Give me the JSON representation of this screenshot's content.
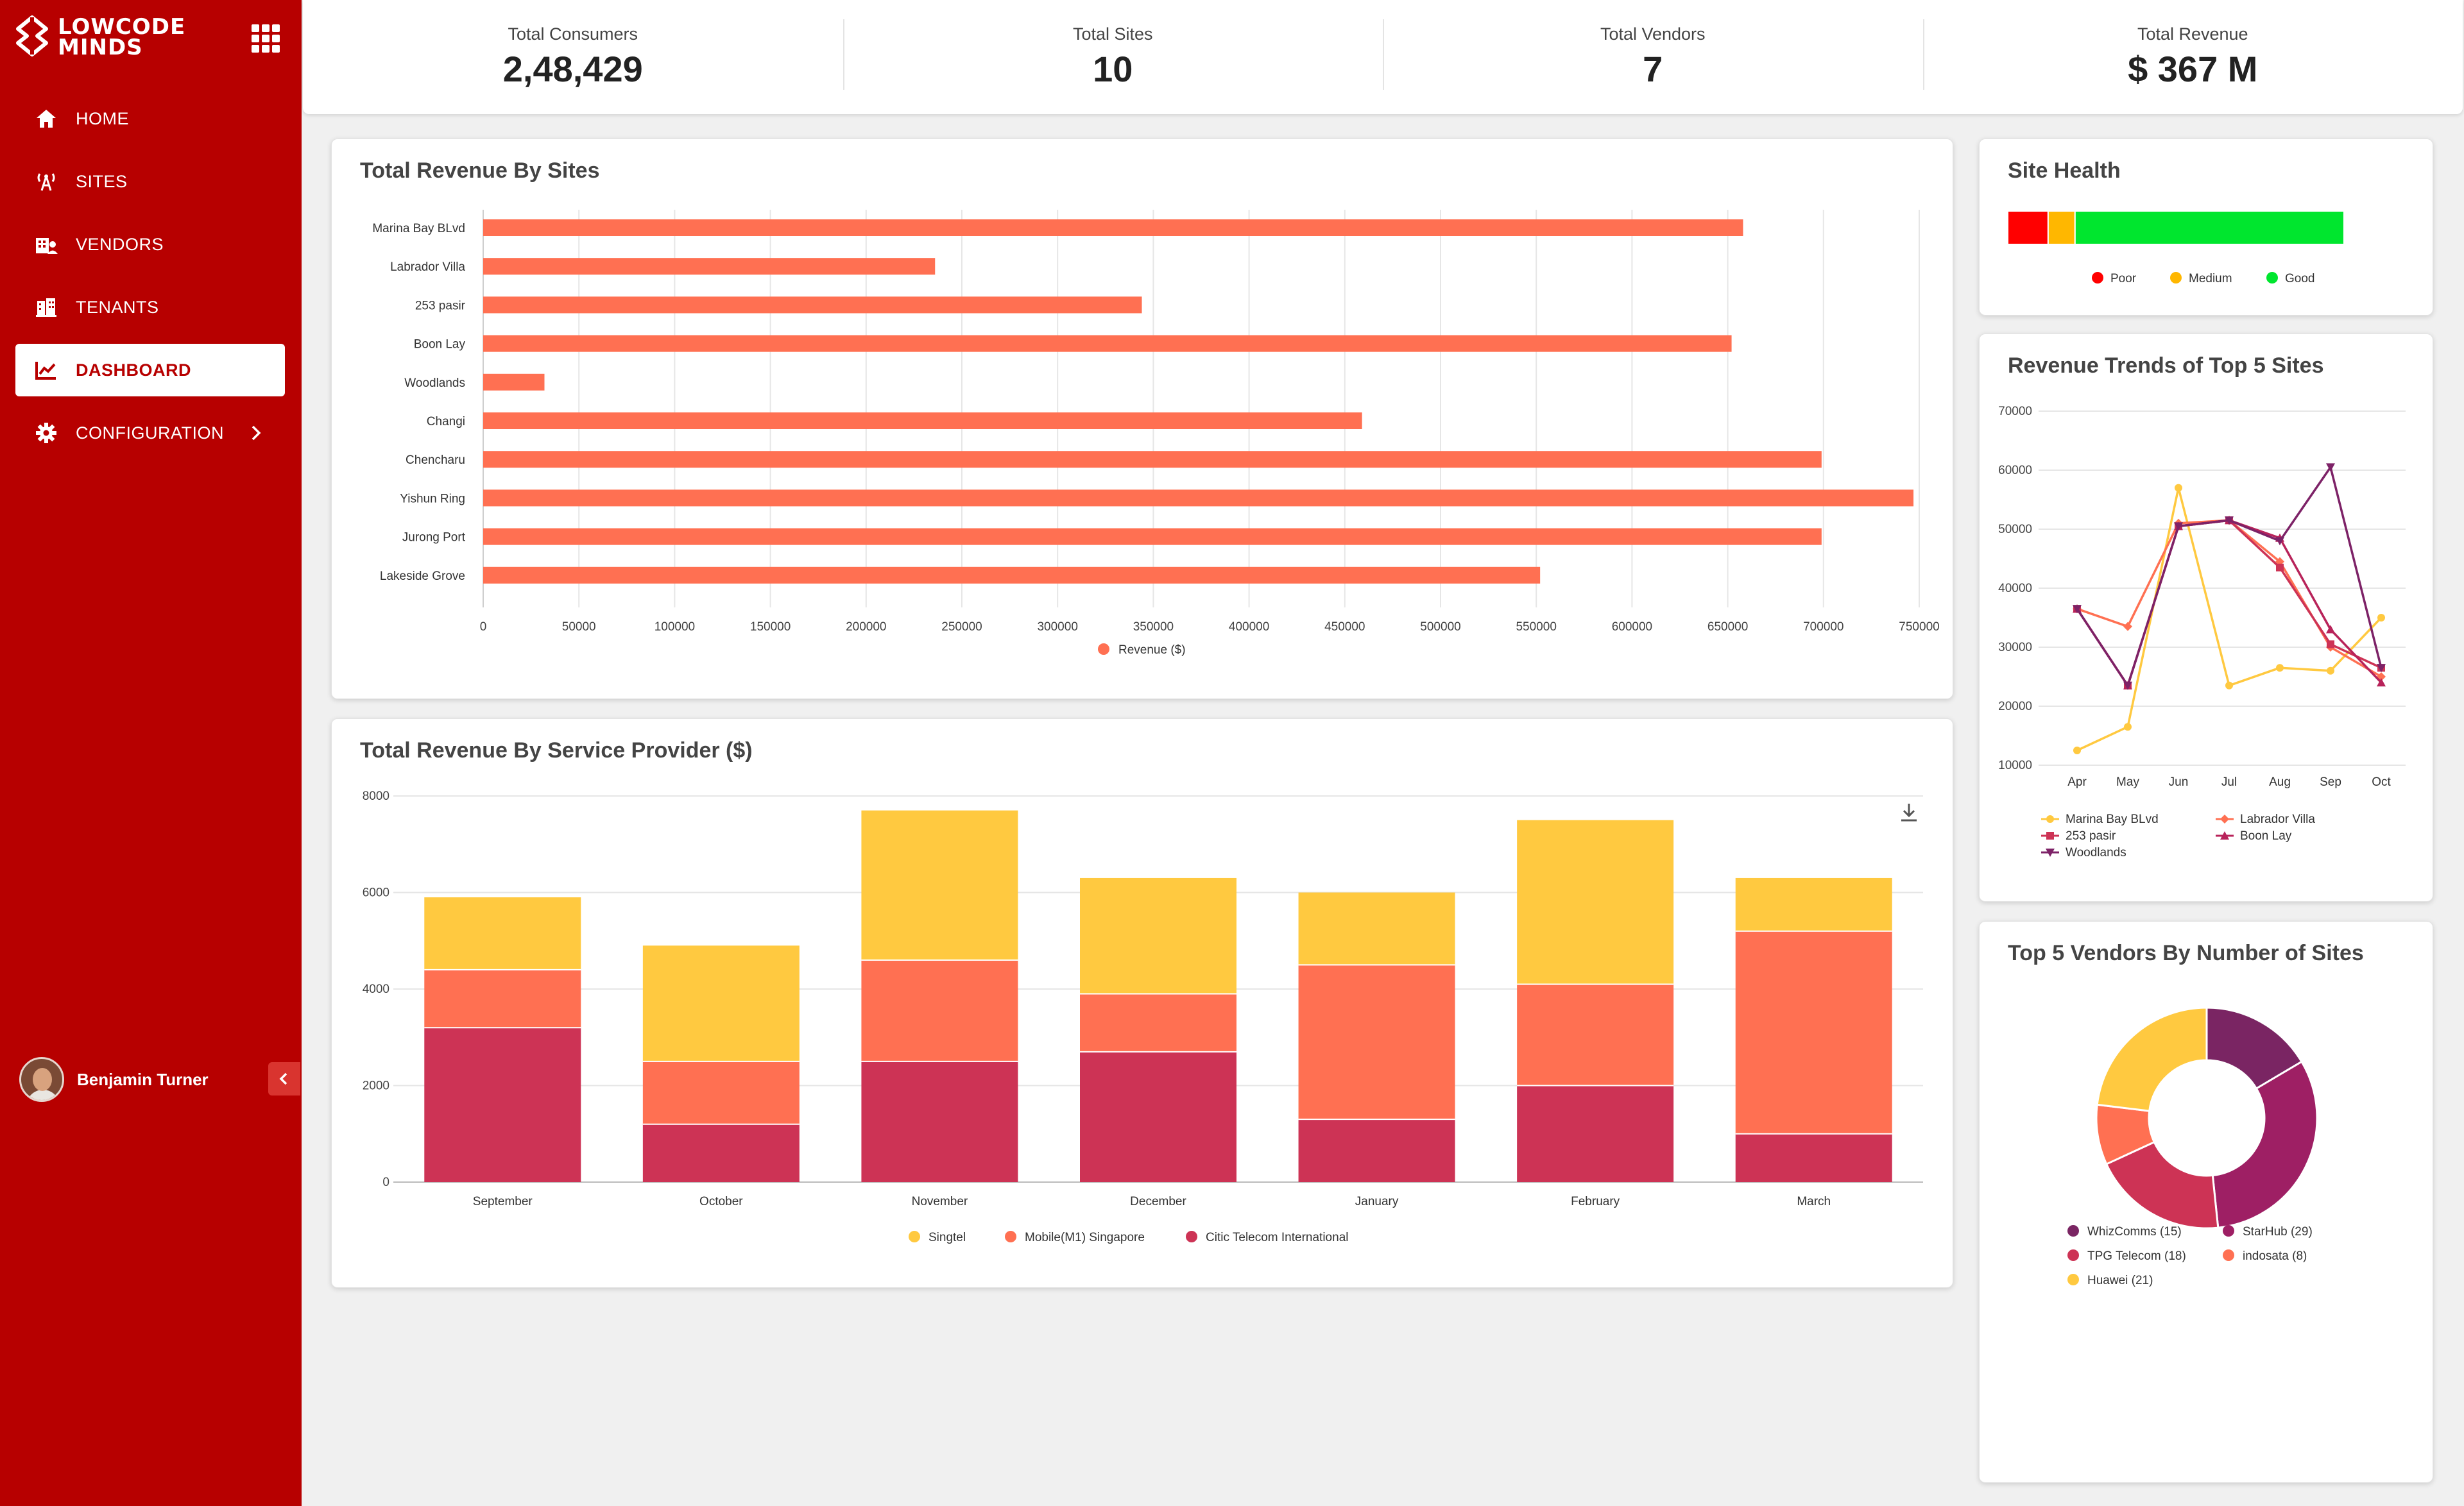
{
  "app": {
    "logo_line1": "LOWCODE",
    "logo_line2": "MINDS"
  },
  "sidebar": {
    "items": [
      {
        "label": "HOME",
        "icon": "home-icon"
      },
      {
        "label": "SITES",
        "icon": "antenna-icon"
      },
      {
        "label": "VENDORS",
        "icon": "vendors-icon"
      },
      {
        "label": "TENANTS",
        "icon": "building-icon"
      },
      {
        "label": "DASHBOARD",
        "icon": "chart-line-icon",
        "active": true
      },
      {
        "label": "CONFIGURATION",
        "icon": "gear-icon"
      }
    ],
    "user_name": "Benjamin Turner"
  },
  "kpis": [
    {
      "label": "Total Consumers",
      "value": "2,48,429"
    },
    {
      "label": "Total Sites",
      "value": "10"
    },
    {
      "label": "Total Vendors",
      "value": "7"
    },
    {
      "label": "Total Revenue",
      "value": "$ 367 M"
    }
  ],
  "colors": {
    "sidebar": "#b70000",
    "coral": "#ff7052",
    "yellow": "#ffc940",
    "crimson": "#cd3355",
    "poor": "#ff0000",
    "medium": "#ffb700",
    "good": "#00e62e"
  },
  "site_health": {
    "title": "Site Health",
    "segments": [
      {
        "name": "Poor",
        "value": 12,
        "color": "#ff0000"
      },
      {
        "name": "Medium",
        "value": 8,
        "color": "#ffb700"
      },
      {
        "name": "Good",
        "value": 80,
        "color": "#00e62e"
      }
    ]
  },
  "chart_data": [
    {
      "id": "revenue-by-sites",
      "type": "bar",
      "orientation": "horizontal",
      "title": "Total Revenue By Sites",
      "categories": [
        "Marina Bay BLvd",
        "Labrador Villa",
        "253 pasir",
        "Boon Lay",
        "Woodlands",
        "Changi",
        "Chencharu",
        "Yishun Ring",
        "Jurong Port",
        "Lakeside Grove"
      ],
      "series": [
        {
          "name": "Revenue ($)",
          "values": [
            658000,
            236000,
            344000,
            652000,
            32000,
            459000,
            699000,
            747000,
            699000,
            552000
          ]
        }
      ],
      "xlim": [
        0,
        750000
      ],
      "xticks": [
        "0",
        "50000",
        "100000",
        "150000",
        "200000",
        "250000",
        "300000",
        "350000",
        "400000",
        "450000",
        "500000",
        "550000",
        "600000",
        "650000",
        "700000",
        "750000"
      ],
      "legend": "bottom",
      "grid": true
    },
    {
      "id": "revenue-by-provider",
      "type": "bar",
      "stacked": true,
      "title": "Total Revenue By Service Provider ($)",
      "categories": [
        "September",
        "October",
        "November",
        "December",
        "January",
        "February",
        "March"
      ],
      "series": [
        {
          "name": "Singtel",
          "values": [
            1500,
            2400,
            3100,
            2400,
            1500,
            3400,
            1100
          ]
        },
        {
          "name": "Mobile(M1) Singapore",
          "values": [
            1200,
            1300,
            2100,
            1200,
            3200,
            2100,
            4200
          ]
        },
        {
          "name": "Citic Telecom International",
          "values": [
            3200,
            1200,
            2500,
            2700,
            1300,
            2000,
            1000
          ]
        }
      ],
      "ylim": [
        0,
        8000
      ],
      "yticks": [
        "0",
        "2000",
        "4000",
        "6000",
        "8000"
      ],
      "legend": "bottom",
      "grid": true
    },
    {
      "id": "revenue-trends",
      "type": "line",
      "title": "Revenue Trends of Top 5 Sites",
      "x": [
        "Apr",
        "May",
        "Jun",
        "Jul",
        "Aug",
        "Sep",
        "Oct"
      ],
      "series": [
        {
          "name": "Marina Bay BLvd",
          "values": [
            12500,
            16500,
            57000,
            23500,
            26500,
            26000,
            35000
          ],
          "marker": "circle"
        },
        {
          "name": "Labrador Villa",
          "values": [
            36500,
            33500,
            51000,
            51500,
            44500,
            30000,
            25000
          ],
          "marker": "diamond"
        },
        {
          "name": "253 pasir",
          "values": [
            36500,
            23500,
            50500,
            51500,
            43500,
            30500,
            26500
          ],
          "marker": "square"
        },
        {
          "name": "Boon Lay",
          "values": [
            36500,
            23500,
            50500,
            51500,
            48500,
            33000,
            24000
          ],
          "marker": "triangle"
        },
        {
          "name": "Woodlands",
          "values": [
            36500,
            23500,
            50500,
            51500,
            48000,
            60500,
            26500
          ],
          "marker": "triangle-down"
        }
      ],
      "ylim": [
        10000,
        70000
      ],
      "yticks": [
        "10000",
        "20000",
        "30000",
        "40000",
        "50000",
        "60000",
        "70000"
      ],
      "legend": "bottom",
      "grid": true
    },
    {
      "id": "top-vendors",
      "type": "pie",
      "donut": true,
      "title": "Top 5 Vendors By Number of Sites",
      "slices": [
        {
          "name": "WhizComms",
          "value": 15,
          "label": "WhizComms (15)"
        },
        {
          "name": "StarHub",
          "value": 29,
          "label": "StarHub (29)"
        },
        {
          "name": "TPG Telecom",
          "value": 18,
          "label": "TPG Telecom (18)"
        },
        {
          "name": "indosata",
          "value": 8,
          "label": "indosata (8)"
        },
        {
          "name": "Huawei",
          "value": 21,
          "label": "Huawei (21)"
        }
      ],
      "legend": "bottom"
    }
  ]
}
